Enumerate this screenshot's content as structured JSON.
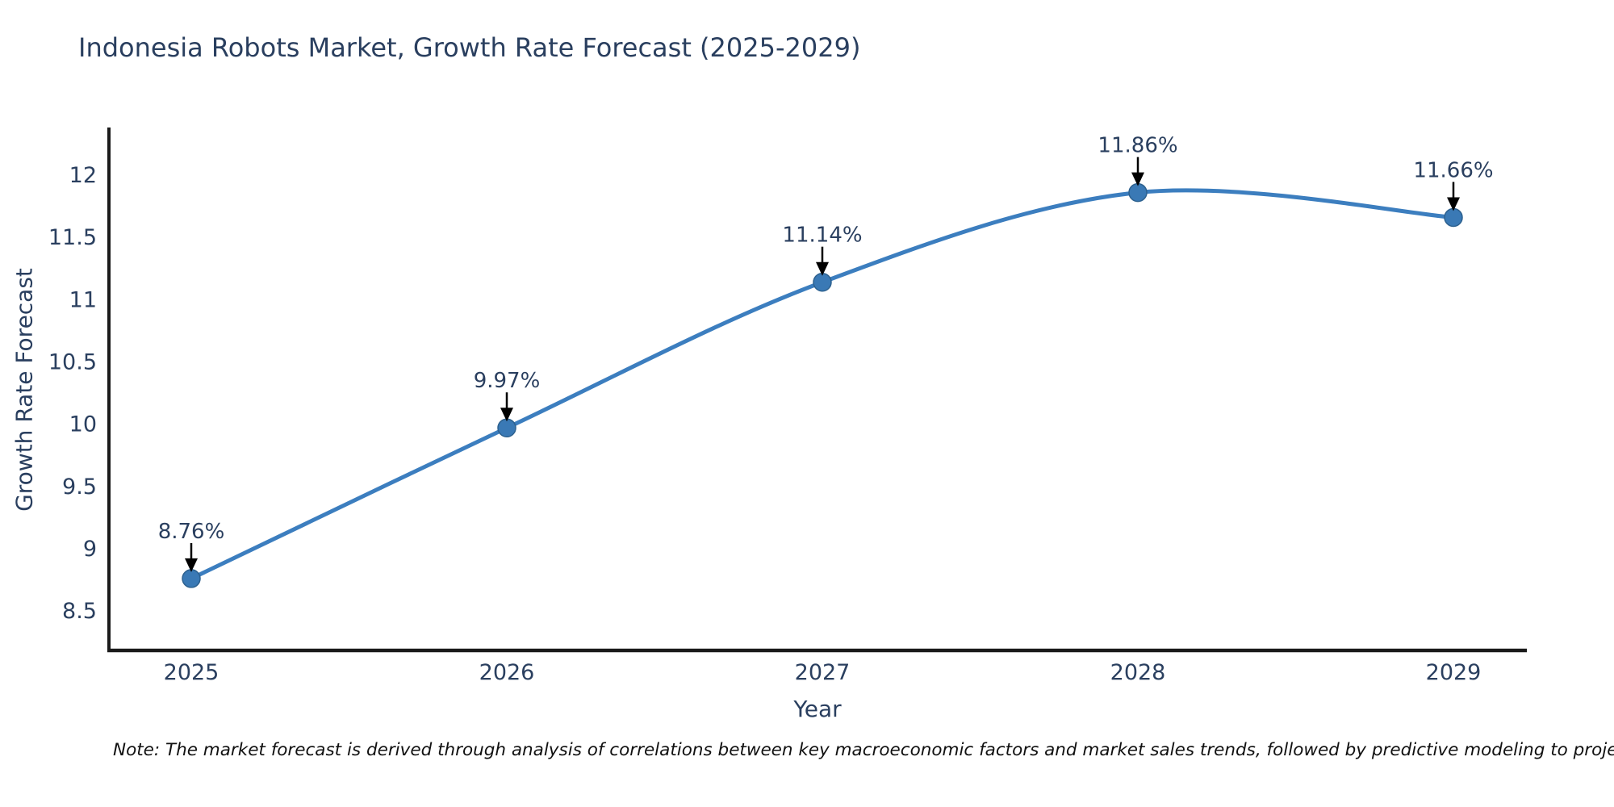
{
  "header": {
    "title": "Indonesia Robots Market, Growth Rate Forecast (2025-2029)"
  },
  "chart_data": {
    "type": "line",
    "title": "Indonesia Robots Market, Growth Rate Forecast (2025-2029)",
    "xlabel": "Year",
    "ylabel": "Growth Rate Forecast",
    "x": [
      2025,
      2026,
      2027,
      2028,
      2029
    ],
    "x_tick_labels": [
      "2025",
      "2026",
      "2027",
      "2028",
      "2029"
    ],
    "values": [
      8.76,
      9.97,
      11.14,
      11.86,
      11.66
    ],
    "point_labels": [
      "8.76%",
      "9.97%",
      "11.14%",
      "11.86%",
      "11.66%"
    ],
    "y_ticks": [
      8.5,
      9,
      9.5,
      10,
      10.5,
      11,
      11.5,
      12
    ],
    "ylim": [
      8.18,
      12.38
    ],
    "grid": false,
    "legend": "none",
    "line_shape": "spline",
    "annotations_arrow": "down-arrow-to-point",
    "colors": {
      "line": "#3c7ebf",
      "marker": "#3a79b5",
      "marker_edge": "#2d618f",
      "axis": "#1a1a1a",
      "text": "#2a3f5f",
      "arrow": "#000000"
    }
  },
  "footer": {
    "note": "Note: The market forecast is derived through analysis of correlations between key macroeconomic factors and market sales trends, followed by predictive modeling to project future sales."
  }
}
